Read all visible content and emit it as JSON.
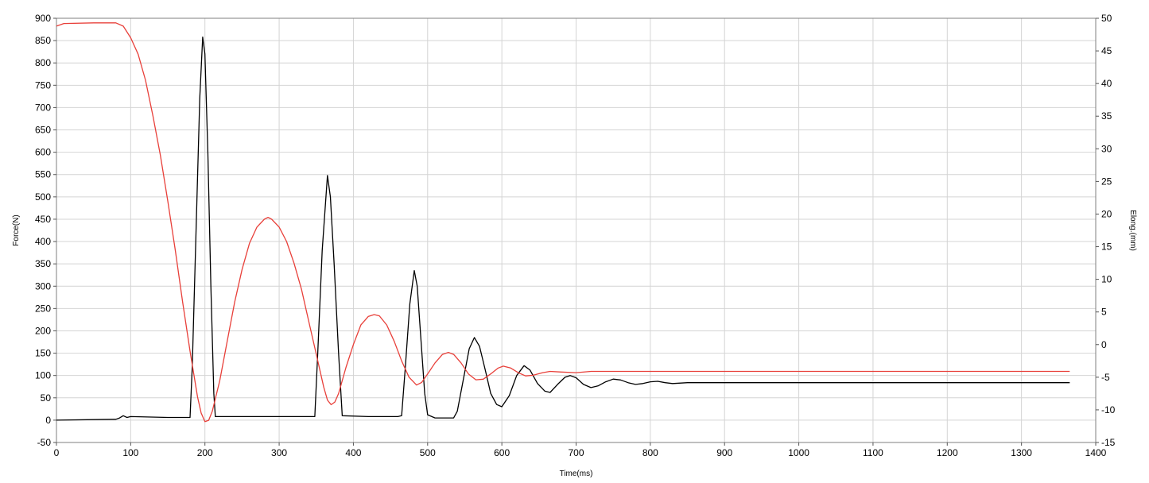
{
  "chart_data": {
    "type": "line",
    "xlabel": "Time(ms)",
    "ylabel_left": "Force(N)",
    "ylabel_right": "Elong.(mm)",
    "xlim": [
      0,
      1400
    ],
    "ylim_left": [
      -50,
      900
    ],
    "ylim_right": [
      -15,
      50
    ],
    "x_ticks": [
      0,
      100,
      200,
      300,
      400,
      500,
      600,
      700,
      800,
      900,
      1000,
      1100,
      1200,
      1300,
      1400
    ],
    "y_left_ticks": [
      -50,
      0,
      50,
      100,
      150,
      200,
      250,
      300,
      350,
      400,
      450,
      500,
      550,
      600,
      650,
      700,
      750,
      800,
      850,
      900
    ],
    "y_right_ticks": [
      -15,
      -10,
      -5,
      0,
      5,
      10,
      15,
      20,
      25,
      30,
      35,
      40,
      45,
      50
    ],
    "grid": true,
    "series": [
      {
        "axis": "left",
        "color": "#000000",
        "points": [
          [
            0,
            0
          ],
          [
            80,
            2
          ],
          [
            85,
            5
          ],
          [
            90,
            10
          ],
          [
            95,
            6
          ],
          [
            100,
            8
          ],
          [
            150,
            6
          ],
          [
            180,
            6
          ],
          [
            183,
            120
          ],
          [
            188,
            420
          ],
          [
            193,
            720
          ],
          [
            197,
            858
          ],
          [
            200,
            820
          ],
          [
            204,
            600
          ],
          [
            208,
            300
          ],
          [
            212,
            60
          ],
          [
            214,
            8
          ],
          [
            250,
            8
          ],
          [
            300,
            8
          ],
          [
            340,
            8
          ],
          [
            348,
            8
          ],
          [
            352,
            150
          ],
          [
            358,
            380
          ],
          [
            365,
            548
          ],
          [
            369,
            500
          ],
          [
            374,
            350
          ],
          [
            380,
            150
          ],
          [
            385,
            10
          ],
          [
            420,
            8
          ],
          [
            460,
            8
          ],
          [
            465,
            10
          ],
          [
            470,
            120
          ],
          [
            476,
            260
          ],
          [
            482,
            335
          ],
          [
            486,
            300
          ],
          [
            491,
            180
          ],
          [
            496,
            60
          ],
          [
            500,
            12
          ],
          [
            510,
            5
          ],
          [
            535,
            5
          ],
          [
            540,
            20
          ],
          [
            548,
            90
          ],
          [
            556,
            160
          ],
          [
            563,
            185
          ],
          [
            570,
            165
          ],
          [
            578,
            110
          ],
          [
            585,
            60
          ],
          [
            593,
            35
          ],
          [
            600,
            30
          ],
          [
            610,
            55
          ],
          [
            620,
            100
          ],
          [
            630,
            122
          ],
          [
            638,
            112
          ],
          [
            648,
            82
          ],
          [
            658,
            65
          ],
          [
            665,
            62
          ],
          [
            675,
            80
          ],
          [
            685,
            96
          ],
          [
            692,
            100
          ],
          [
            700,
            95
          ],
          [
            710,
            80
          ],
          [
            720,
            73
          ],
          [
            730,
            77
          ],
          [
            740,
            86
          ],
          [
            750,
            92
          ],
          [
            760,
            90
          ],
          [
            770,
            84
          ],
          [
            780,
            80
          ],
          [
            790,
            82
          ],
          [
            800,
            86
          ],
          [
            810,
            87
          ],
          [
            820,
            84
          ],
          [
            830,
            82
          ],
          [
            850,
            84
          ],
          [
            900,
            84
          ],
          [
            1000,
            84
          ],
          [
            1100,
            84
          ],
          [
            1200,
            84
          ],
          [
            1300,
            84
          ],
          [
            1365,
            84
          ]
        ]
      },
      {
        "axis": "right",
        "color": "#e8403a",
        "points": [
          [
            0,
            48.8
          ],
          [
            10,
            49.2
          ],
          [
            50,
            49.3
          ],
          [
            80,
            49.3
          ],
          [
            90,
            48.8
          ],
          [
            100,
            47
          ],
          [
            110,
            44.5
          ],
          [
            120,
            40.5
          ],
          [
            130,
            35
          ],
          [
            140,
            29
          ],
          [
            150,
            22
          ],
          [
            160,
            14.5
          ],
          [
            170,
            6.5
          ],
          [
            180,
            -1
          ],
          [
            190,
            -8
          ],
          [
            195,
            -10.5
          ],
          [
            200,
            -11.8
          ],
          [
            205,
            -11.6
          ],
          [
            210,
            -10.2
          ],
          [
            220,
            -5.5
          ],
          [
            230,
            0.5
          ],
          [
            240,
            6.5
          ],
          [
            250,
            11.5
          ],
          [
            260,
            15.5
          ],
          [
            270,
            18
          ],
          [
            280,
            19.2
          ],
          [
            285,
            19.5
          ],
          [
            290,
            19.2
          ],
          [
            300,
            18
          ],
          [
            310,
            15.8
          ],
          [
            320,
            12.5
          ],
          [
            330,
            8.5
          ],
          [
            340,
            3.5
          ],
          [
            350,
            -1.5
          ],
          [
            360,
            -6.5
          ],
          [
            365,
            -8.5
          ],
          [
            370,
            -9.2
          ],
          [
            375,
            -8.8
          ],
          [
            380,
            -7.5
          ],
          [
            390,
            -3.5
          ],
          [
            400,
            0
          ],
          [
            410,
            3
          ],
          [
            420,
            4.3
          ],
          [
            428,
            4.6
          ],
          [
            435,
            4.4
          ],
          [
            445,
            3
          ],
          [
            455,
            0.5
          ],
          [
            465,
            -2.5
          ],
          [
            475,
            -5
          ],
          [
            485,
            -6.2
          ],
          [
            492,
            -5.8
          ],
          [
            500,
            -4.5
          ],
          [
            510,
            -2.8
          ],
          [
            520,
            -1.5
          ],
          [
            528,
            -1.2
          ],
          [
            535,
            -1.5
          ],
          [
            545,
            -2.8
          ],
          [
            555,
            -4.5
          ],
          [
            565,
            -5.4
          ],
          [
            575,
            -5.3
          ],
          [
            585,
            -4.5
          ],
          [
            595,
            -3.6
          ],
          [
            602,
            -3.3
          ],
          [
            612,
            -3.6
          ],
          [
            622,
            -4.3
          ],
          [
            632,
            -4.8
          ],
          [
            642,
            -4.7
          ],
          [
            655,
            -4.3
          ],
          [
            665,
            -4.1
          ],
          [
            680,
            -4.2
          ],
          [
            700,
            -4.3
          ],
          [
            720,
            -4.1
          ],
          [
            750,
            -4.1
          ],
          [
            800,
            -4.1
          ],
          [
            900,
            -4.1
          ],
          [
            1000,
            -4.1
          ],
          [
            1100,
            -4.1
          ],
          [
            1200,
            -4.1
          ],
          [
            1300,
            -4.1
          ],
          [
            1365,
            -4.1
          ]
        ]
      }
    ]
  }
}
